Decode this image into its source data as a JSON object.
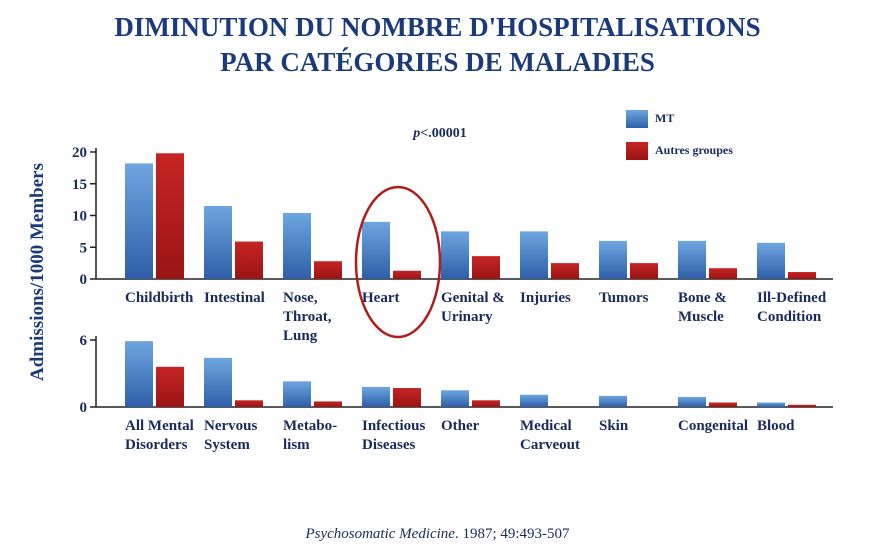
{
  "title_line1": "DIMINUTION DU NOMBRE D'HOSPITALISATIONS",
  "title_line2": "PAR CATÉGORIES DE MALADIES",
  "source_journal": "Psychosomatic Medicine",
  "source_ref": ". 1987; 49:493-507",
  "colors": {
    "mt": "#4a88cc",
    "other": "#b31b1b",
    "title": "#1a3a7a",
    "text": "#1a2a5a"
  },
  "chart_data": [
    {
      "type": "bar",
      "ylabel": "Admissions/1000 Members",
      "annotation": "p<.00001",
      "ylim": [
        0,
        20
      ],
      "yticks": [
        0,
        5,
        10,
        15,
        20
      ],
      "categories": [
        [
          "Childbirth"
        ],
        [
          "Intestinal"
        ],
        [
          "Nose,",
          "Throat,",
          "Lung"
        ],
        [
          "Heart"
        ],
        [
          "Genital &",
          "Urinary"
        ],
        [
          "Injuries"
        ],
        [
          "Tumors"
        ],
        [
          "Bone &",
          "Muscle"
        ],
        [
          "Ill-Defined",
          "Condition"
        ]
      ],
      "highlighted_category": "Heart",
      "series": [
        {
          "name": "MT",
          "values": [
            18.2,
            11.5,
            10.4,
            9.0,
            7.5,
            7.5,
            6.0,
            6.0,
            5.7
          ]
        },
        {
          "name": "Autres groupes",
          "values": [
            19.8,
            5.9,
            2.8,
            1.3,
            3.6,
            2.5,
            2.5,
            1.7,
            1.1
          ]
        }
      ],
      "legend": "top-right"
    },
    {
      "type": "bar",
      "ylabel": "Admissions/1000 Members",
      "ylim": [
        0,
        6
      ],
      "yticks": [
        0,
        6
      ],
      "categories": [
        [
          "All Mental",
          "Disorders"
        ],
        [
          "Nervous",
          "System"
        ],
        [
          "Metabo-",
          "lism"
        ],
        [
          "Infectious",
          "Diseases"
        ],
        [
          "Other"
        ],
        [
          "Medical",
          "Carveout"
        ],
        [
          "Skin"
        ],
        [
          "Congenital"
        ],
        [
          "Blood"
        ]
      ],
      "series": [
        {
          "name": "MT",
          "values": [
            5.9,
            4.4,
            2.3,
            1.8,
            1.5,
            1.1,
            1.0,
            0.9,
            0.4
          ]
        },
        {
          "name": "Autres groupes",
          "values": [
            3.6,
            0.6,
            0.5,
            1.7,
            0.6,
            0.0,
            0.0,
            0.4,
            0.2
          ]
        }
      ]
    }
  ]
}
